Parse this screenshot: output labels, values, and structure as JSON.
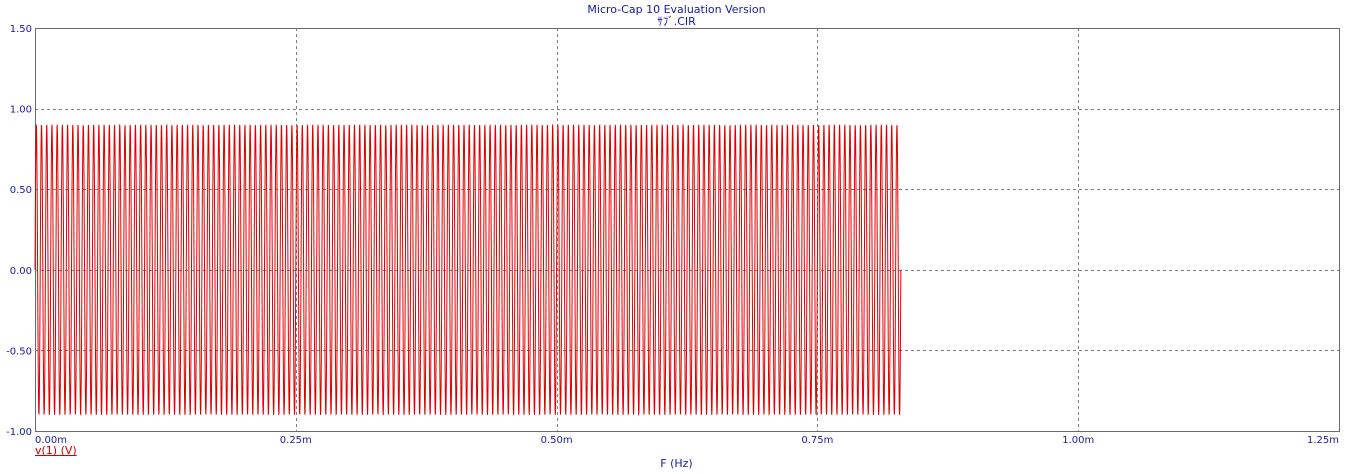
{
  "window": {
    "title": "Micro-Cap 10 Evaluation Version",
    "subtitle": "ｻﾌﾞ.CIR"
  },
  "chart_data": {
    "type": "line",
    "xlabel": "F (Hz)",
    "ylabel": "",
    "xlim": [
      0,
      0.00125
    ],
    "ylim": [
      -1.0,
      1.5
    ],
    "x_ticks": [
      "0.00m",
      "0.25m",
      "0.50m",
      "0.75m",
      "1.00m",
      "1.25m"
    ],
    "y_ticks": [
      "1.50",
      "1.00",
      "0.50",
      "0.00",
      "-0.50",
      "-1.00"
    ],
    "grid": true,
    "series": [
      {
        "name": "v(1) (V)",
        "color": "#e00000",
        "shape": "sinusoid",
        "amplitude": 0.9,
        "x_start": 0.0,
        "x_end": 0.00083,
        "frequency": 200000
      }
    ]
  }
}
